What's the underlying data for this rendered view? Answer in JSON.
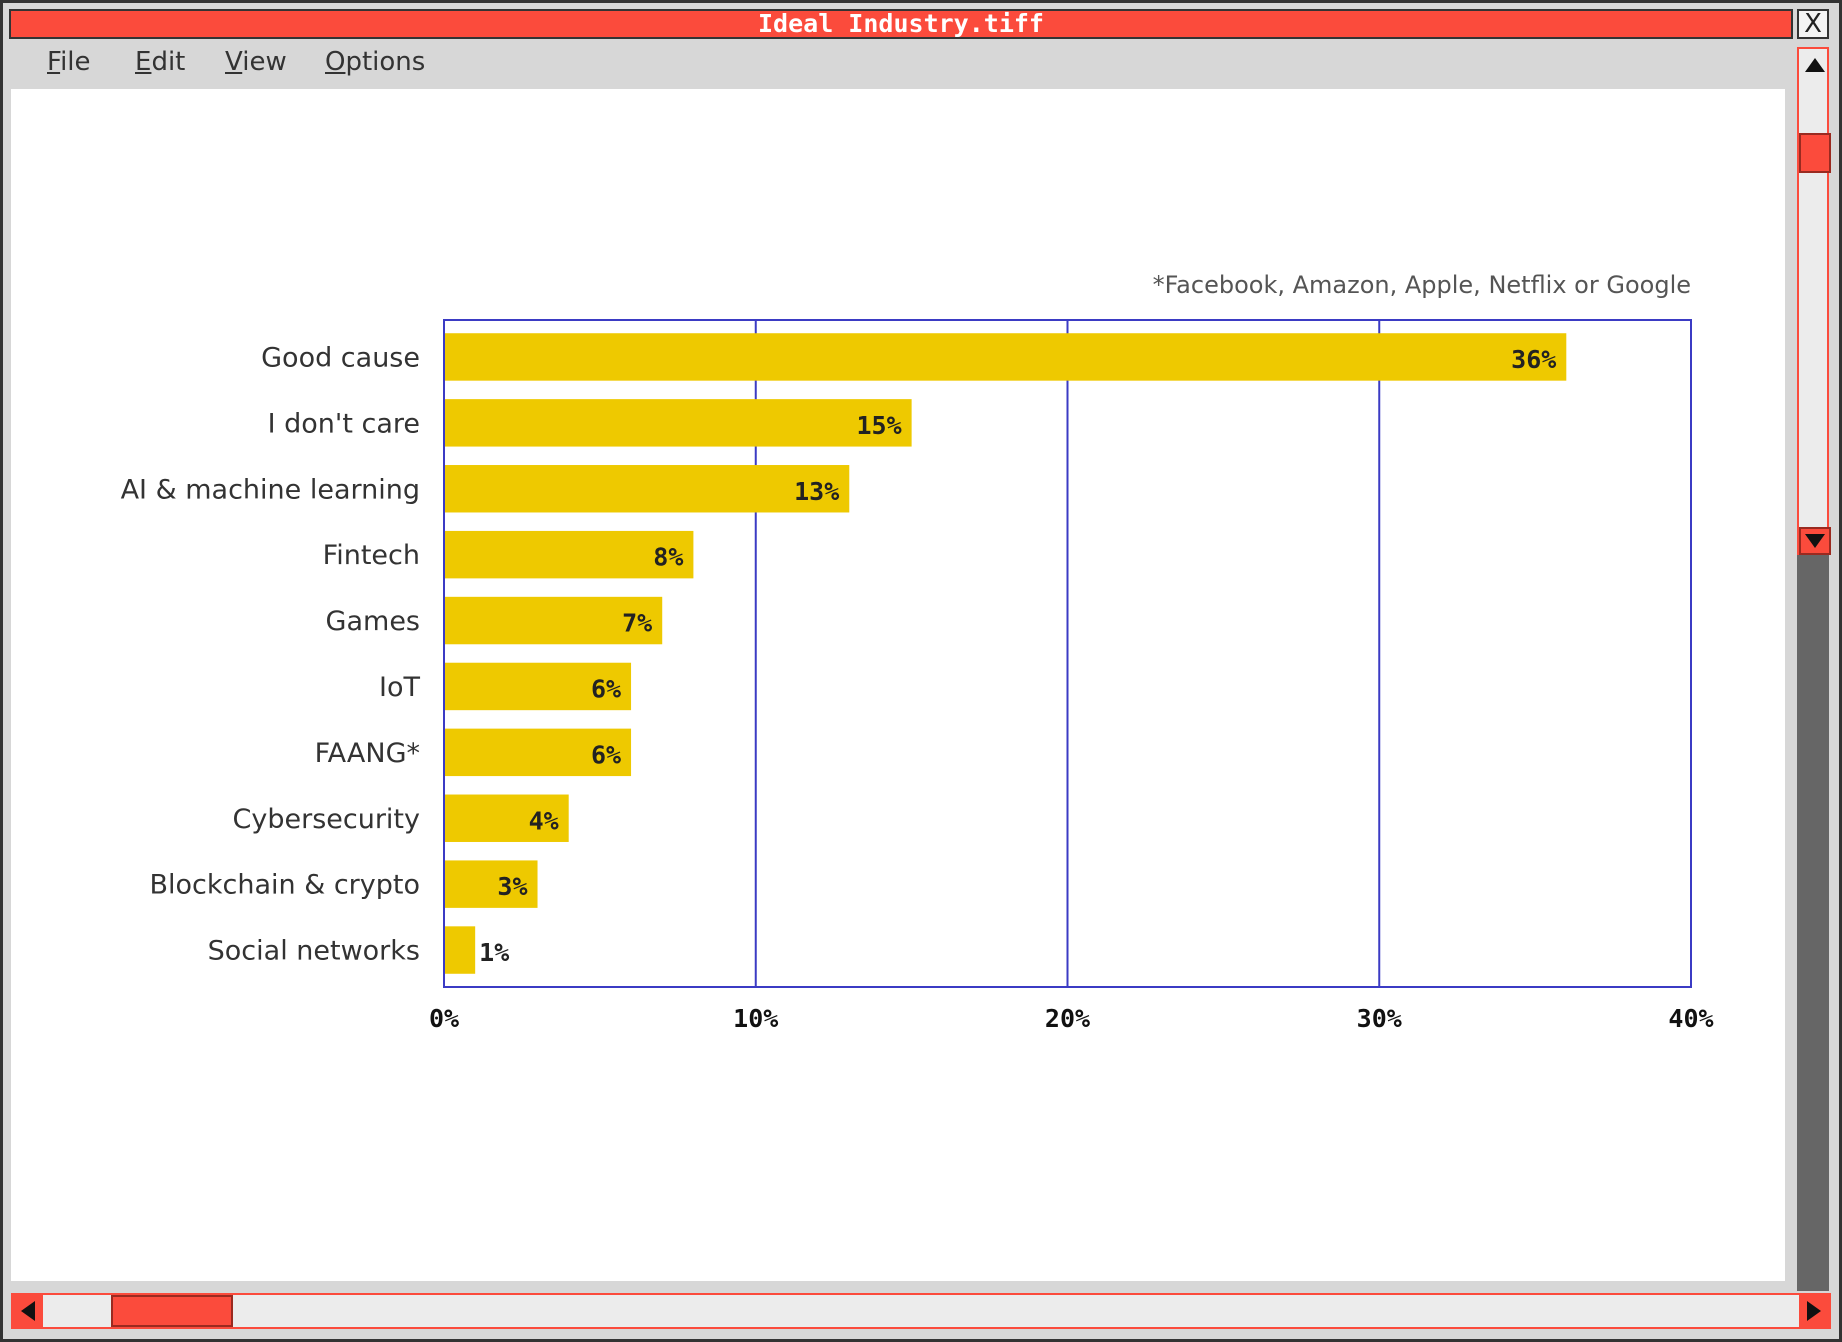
{
  "window": {
    "title": "Ideal Industry.tiff",
    "close_label": "X"
  },
  "menu": {
    "items": [
      {
        "label": "File",
        "mnemonic": "F",
        "rest": "ile"
      },
      {
        "label": "Edit",
        "mnemonic": "E",
        "rest": "dit"
      },
      {
        "label": "View",
        "mnemonic": "V",
        "rest": "iew"
      },
      {
        "label": "Options",
        "mnemonic": "O",
        "rest": "ptions"
      }
    ]
  },
  "colors": {
    "accent": "#fb4b3c",
    "bar": "#eec900",
    "axis": "#3b3bc4"
  },
  "icons": {
    "close": "close-icon",
    "scroll_up": "triangle-up-icon",
    "scroll_down": "triangle-down-icon",
    "scroll_left": "triangle-left-icon",
    "scroll_right": "triangle-right-icon"
  },
  "chart_data": {
    "type": "bar",
    "orientation": "horizontal",
    "annotation": "*Facebook, Amazon, Apple, Netflix or Google",
    "categories": [
      "Good cause",
      "I don't care",
      "AI & machine learning",
      "Fintech",
      "Games",
      "IoT",
      "FAANG*",
      "Cybersecurity",
      "Blockchain & crypto",
      "Social networks"
    ],
    "values": [
      36,
      15,
      13,
      8,
      7,
      6,
      6,
      4,
      3,
      1
    ],
    "value_labels": [
      "36%",
      "15%",
      "13%",
      "8%",
      "7%",
      "6%",
      "6%",
      "4%",
      "3%",
      "1%"
    ],
    "xlim": [
      0,
      40
    ],
    "xticks": [
      0,
      10,
      20,
      30,
      40
    ],
    "xtick_labels": [
      "0%",
      "10%",
      "20%",
      "30%",
      "40%"
    ],
    "grid": "vertical"
  }
}
